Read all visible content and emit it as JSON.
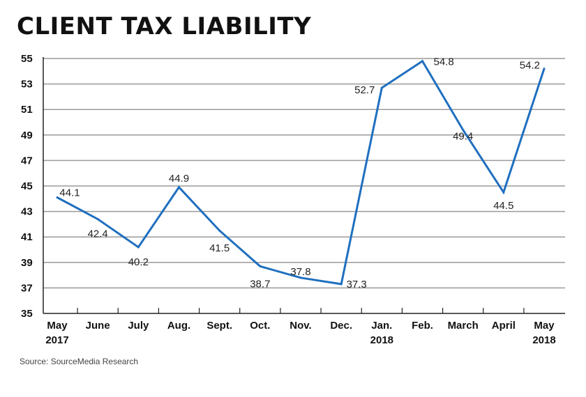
{
  "title": "CLIENT TAX LIABILITY",
  "source": "Source: SourceMedia Research",
  "chart_data": {
    "type": "line",
    "title": "CLIENT TAX LIABILITY",
    "xlabel": "",
    "ylabel": "",
    "ylim": [
      35,
      55
    ],
    "yticks": [
      35,
      37,
      39,
      41,
      43,
      45,
      47,
      49,
      51,
      53,
      55
    ],
    "grid": true,
    "categories": [
      [
        "May",
        "2017"
      ],
      [
        "June"
      ],
      [
        "July"
      ],
      [
        "Aug."
      ],
      [
        "Sept."
      ],
      [
        "Oct."
      ],
      [
        "Nov."
      ],
      [
        "Dec."
      ],
      [
        "Jan.",
        "2018"
      ],
      [
        "Feb."
      ],
      [
        "March"
      ],
      [
        "April"
      ],
      [
        "May",
        "2018"
      ]
    ],
    "series": [
      {
        "name": "Client tax liability",
        "color": "#1f6fbf",
        "values": [
          44.1,
          42.4,
          40.2,
          44.9,
          41.5,
          38.7,
          37.8,
          37.3,
          52.7,
          54.8,
          49.4,
          44.5,
          54.2
        ]
      }
    ],
    "data_labels": [
      "44.1",
      "42.4",
      "40.2",
      "44.9",
      "41.5",
      "38.7",
      "37.8",
      "37.3",
      "52.7",
      "54.8",
      "49.4",
      "44.5",
      "54.2"
    ]
  }
}
